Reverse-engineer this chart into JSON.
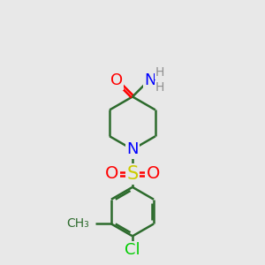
{
  "bg_color": "#e8e8e8",
  "bond_color": "#2d6b2d",
  "bond_width": 1.8,
  "atom_colors": {
    "O": "#ff0000",
    "N": "#0000ff",
    "S": "#cccc00",
    "Cl": "#00cc00",
    "C": "#2d6b2d",
    "H": "#909090"
  },
  "font_size_main": 10,
  "font_size_small": 8,
  "font_size_large": 13
}
